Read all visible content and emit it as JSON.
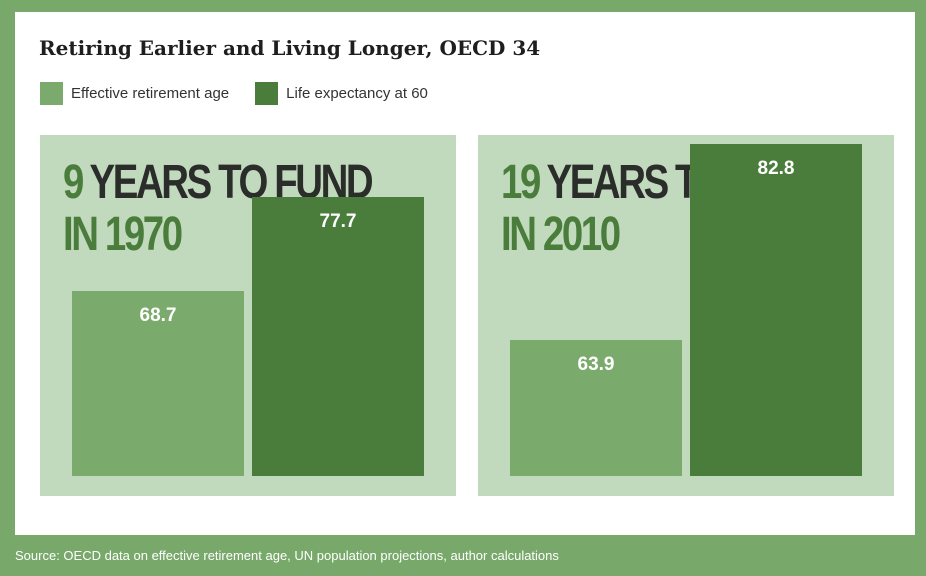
{
  "title": "Retiring Earlier and Living Longer, OECD 34",
  "legend": [
    {
      "label": "Effective retirement age",
      "color": "#7aab6c"
    },
    {
      "label": "Life expectancy at 60",
      "color": "#4a7c3c"
    }
  ],
  "panels": [
    {
      "number": "9",
      "line1_rest": "YEARS TO FUND",
      "line2": "IN 1970"
    },
    {
      "number": "19",
      "line1_rest": "YEARS TO FUND",
      "line2": "IN 2010"
    }
  ],
  "source": "Source: OECD data on effective retirement age, UN population projections, author calculations",
  "chart_data": [
    {
      "type": "bar",
      "categories": [
        "Effective retirement age",
        "Life expectancy at 60"
      ],
      "values": [
        68.7,
        77.7
      ],
      "labels": [
        "68.7",
        "77.7"
      ],
      "colors": [
        "#7aab6c",
        "#4a7c3c"
      ],
      "ylim": [
        60,
        85
      ]
    },
    {
      "type": "bar",
      "categories": [
        "Effective retirement age",
        "Life expectancy at 60"
      ],
      "values": [
        63.9,
        82.8
      ],
      "labels": [
        "63.9",
        "82.8"
      ],
      "colors": [
        "#7aab6c",
        "#4a7c3c"
      ],
      "ylim": [
        60,
        85
      ]
    }
  ]
}
